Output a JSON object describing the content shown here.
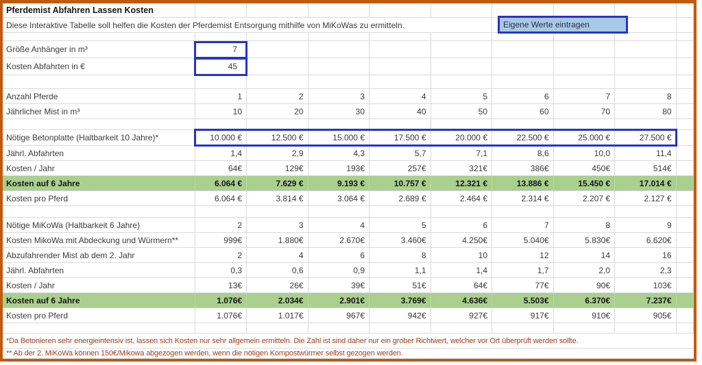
{
  "title": "Pferdemist Abfahren Lassen Kosten",
  "subtitle": "Diese Interaktive Tabelle soll helfen die Kosten der Pferdemist Entsorgung mithilfe von MiKoWas zu ermitteln.",
  "callout": "Eigene Werte eintragen",
  "colors": {
    "frame_border": "#C05A11",
    "gridline": "#DADADA",
    "highlight_green": "#A9D08E",
    "input_border_blue": "#2533CB",
    "callout_fill_blue": "#A8C8E8",
    "footnote_text": "#9C3F1D"
  },
  "rows": [
    {
      "kind": "title",
      "label": "Pferdemist Abfahren Lassen Kosten"
    },
    {
      "kind": "subtitle",
      "label": "Diese Interaktive Tabelle soll helfen die Kosten der Pferdemist Entsorgung mithilfe von MiKoWas zu ermitteln."
    },
    {
      "kind": "blank"
    },
    {
      "kind": "input",
      "label": "Größe Anhänger in m³",
      "value": "7"
    },
    {
      "kind": "input",
      "label": "Kosten Abfahrten in €",
      "value": "45"
    },
    {
      "kind": "blank"
    },
    {
      "kind": "data",
      "label": "Anzahl Pferde",
      "values": [
        "1",
        "2",
        "3",
        "4",
        "5",
        "6",
        "7",
        "8"
      ]
    },
    {
      "kind": "data",
      "label": "Jährlicher Mist in m³",
      "values": [
        "10",
        "20",
        "30",
        "40",
        "50",
        "60",
        "70",
        "80"
      ]
    },
    {
      "kind": "blank"
    },
    {
      "kind": "data",
      "label": "Nötige Betonplatte (Haltbarkeit 10 Jahre)*",
      "values": [
        "10.000 €",
        "12.500 €",
        "15.000 €",
        "17.500 €",
        "20.000 €",
        "22.500 €",
        "25.000 €",
        "27.500 €"
      ]
    },
    {
      "kind": "data",
      "label": "Jährl. Abfahrten",
      "values": [
        "1,4",
        "2,9",
        "4,3",
        "5,7",
        "7,1",
        "8,6",
        "10,0",
        "11,4"
      ]
    },
    {
      "kind": "data",
      "label": "Kosten / Jahr",
      "values": [
        "64€",
        "129€",
        "193€",
        "257€",
        "321€",
        "386€",
        "450€",
        "514€"
      ]
    },
    {
      "kind": "green",
      "label": "Kosten auf 6 Jahre",
      "values": [
        "6.064 €",
        "7.629 €",
        "9.193 €",
        "10.757 €",
        "12.321 €",
        "13.886 €",
        "15.450 €",
        "17.014 €"
      ]
    },
    {
      "kind": "data",
      "label": "Kosten pro Pferd",
      "values": [
        "6.064 €",
        "3.814 €",
        "3.064 €",
        "2.689 €",
        "2.464 €",
        "2.314 €",
        "2.207 €",
        "2.127 €"
      ]
    },
    {
      "kind": "blank"
    },
    {
      "kind": "data",
      "label": "Nötige MiKoWa (Haltbarkeit 6 Jahre)",
      "values": [
        "2",
        "3",
        "4",
        "5",
        "6",
        "7",
        "8",
        "9"
      ]
    },
    {
      "kind": "data",
      "label": "Kosten MikoWa mit Abdeckung und Würmern**",
      "values": [
        "999€",
        "1.880€",
        "2.670€",
        "3.460€",
        "4.250€",
        "5.040€",
        "5.830€",
        "6.620€"
      ]
    },
    {
      "kind": "data",
      "label": "Abzufahrender Mist ab dem 2. Jahr",
      "values": [
        "2",
        "4",
        "6",
        "8",
        "10",
        "12",
        "14",
        "16"
      ]
    },
    {
      "kind": "data",
      "label": "Jährl. Abfahrten",
      "values": [
        "0,3",
        "0,6",
        "0,9",
        "1,1",
        "1,4",
        "1,7",
        "2,0",
        "2,3"
      ]
    },
    {
      "kind": "data",
      "label": "Kosten / Jahr",
      "values": [
        "13€",
        "26€",
        "39€",
        "51€",
        "64€",
        "77€",
        "90€",
        "103€"
      ]
    },
    {
      "kind": "green",
      "label": "Kosten auf 6 Jahre",
      "values": [
        "1.076€",
        "2.034€",
        "2.901€",
        "3.769€",
        "4.636€",
        "5.503€",
        "6.370€",
        "7.237€"
      ]
    },
    {
      "kind": "data",
      "label": "Kosten pro Pferd",
      "values": [
        "1.076€",
        "1.017€",
        "967€",
        "942€",
        "927€",
        "917€",
        "910€",
        "905€"
      ]
    },
    {
      "kind": "blank"
    },
    {
      "kind": "footnote",
      "label": "*Da Betonieren sehr energieintensiv ist, lassen sich Kosten nur sehr allgemein ermitteln. Die Zahl ist sind daher nur ein grober Richtwert, welcher vor Ort überprüft werden sollte."
    },
    {
      "kind": "footnote",
      "label": "** Ab der 2. MiKoWa können 150€/Mikowa abgezogen werden, wenn die nötigen Kompostwürmer selbst gezogen werden."
    }
  ]
}
